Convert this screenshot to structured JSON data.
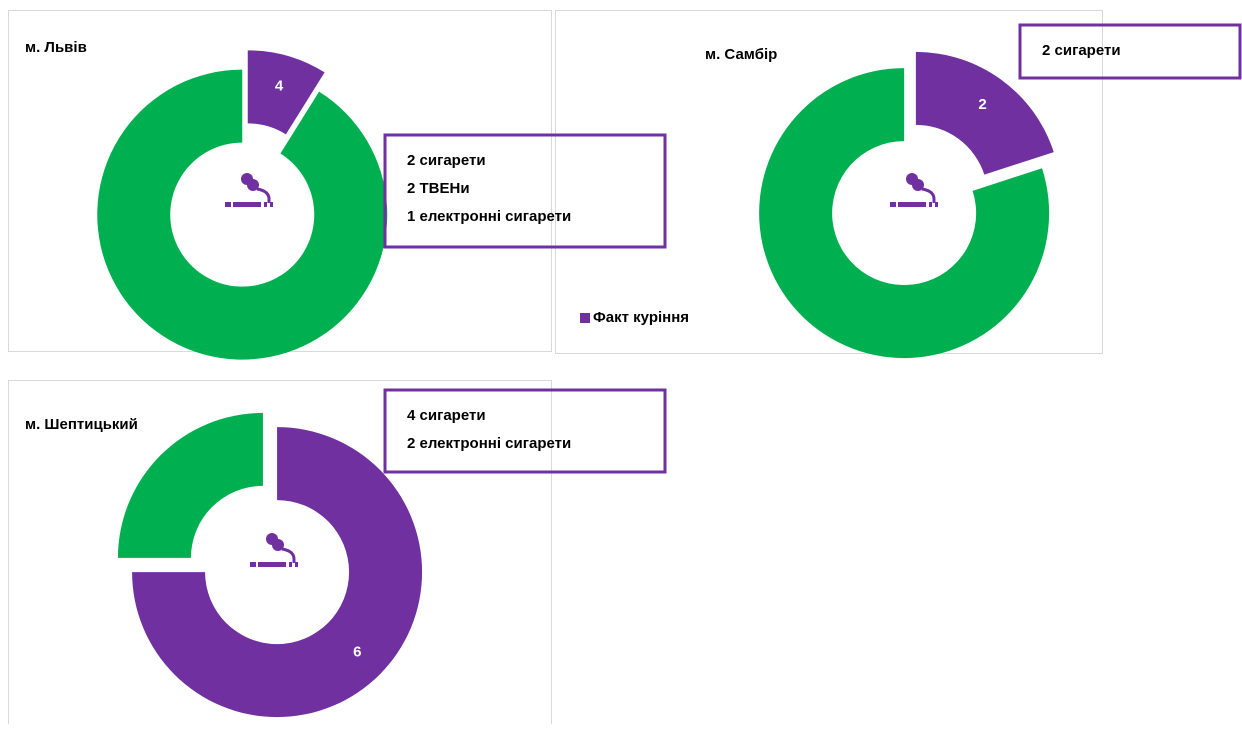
{
  "chart_data": [
    {
      "type": "pie",
      "title": "м. Львів",
      "categories": [
        "Факт куріння",
        null
      ],
      "values": [
        4,
        41
      ],
      "colors": [
        "#7030a0",
        "#00b050"
      ],
      "annotation": [
        "2 сигарети",
        "2 ТВЕНи",
        "1 електронні сигарети"
      ]
    },
    {
      "type": "pie",
      "title": "м. Самбір",
      "categories": [
        "Факт куріння",
        null
      ],
      "values": [
        2,
        8
      ],
      "colors": [
        "#7030a0",
        "#00b050"
      ],
      "annotation": [
        "2 сигарети"
      ],
      "legend": "bottom-left"
    },
    {
      "type": "pie",
      "title": "м. Шептицький",
      "categories": [
        "Факт куріння",
        null
      ],
      "values": [
        6,
        2
      ],
      "colors": [
        "#7030a0",
        "#00b050"
      ],
      "annotation": [
        "4 сигарети",
        "2 електронні сигарети"
      ]
    }
  ]
}
